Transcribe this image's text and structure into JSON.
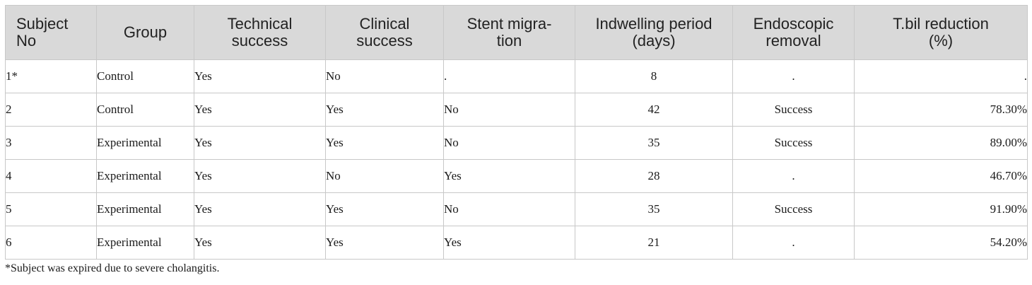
{
  "table": {
    "headers": [
      "Subject\nNo",
      "Group",
      "Technical\nsuccess",
      "Clinical\nsuccess",
      "Stent migra-\ntion",
      "Indwelling period\n(days)",
      "Endoscopic\nremoval",
      "T.bil reduction\n(%)"
    ],
    "rows": [
      [
        "1*",
        "Control",
        "Yes",
        "No",
        ".",
        "8",
        ".",
        "."
      ],
      [
        "2",
        "Control",
        "Yes",
        "Yes",
        "No",
        "42",
        "Success",
        "78.30%"
      ],
      [
        "3",
        "Experimental",
        "Yes",
        "Yes",
        "No",
        "35",
        "Success",
        "89.00%"
      ],
      [
        "4",
        "Experimental",
        "Yes",
        "No",
        "Yes",
        "28",
        ".",
        "46.70%"
      ],
      [
        "5",
        "Experimental",
        "Yes",
        "Yes",
        "No",
        "35",
        "Success",
        "91.90%"
      ],
      [
        "6",
        "Experimental",
        "Yes",
        "Yes",
        "Yes",
        "21",
        ".",
        "54.20%"
      ]
    ]
  },
  "footnote": "*Subject was expired due to severe cholangitis."
}
